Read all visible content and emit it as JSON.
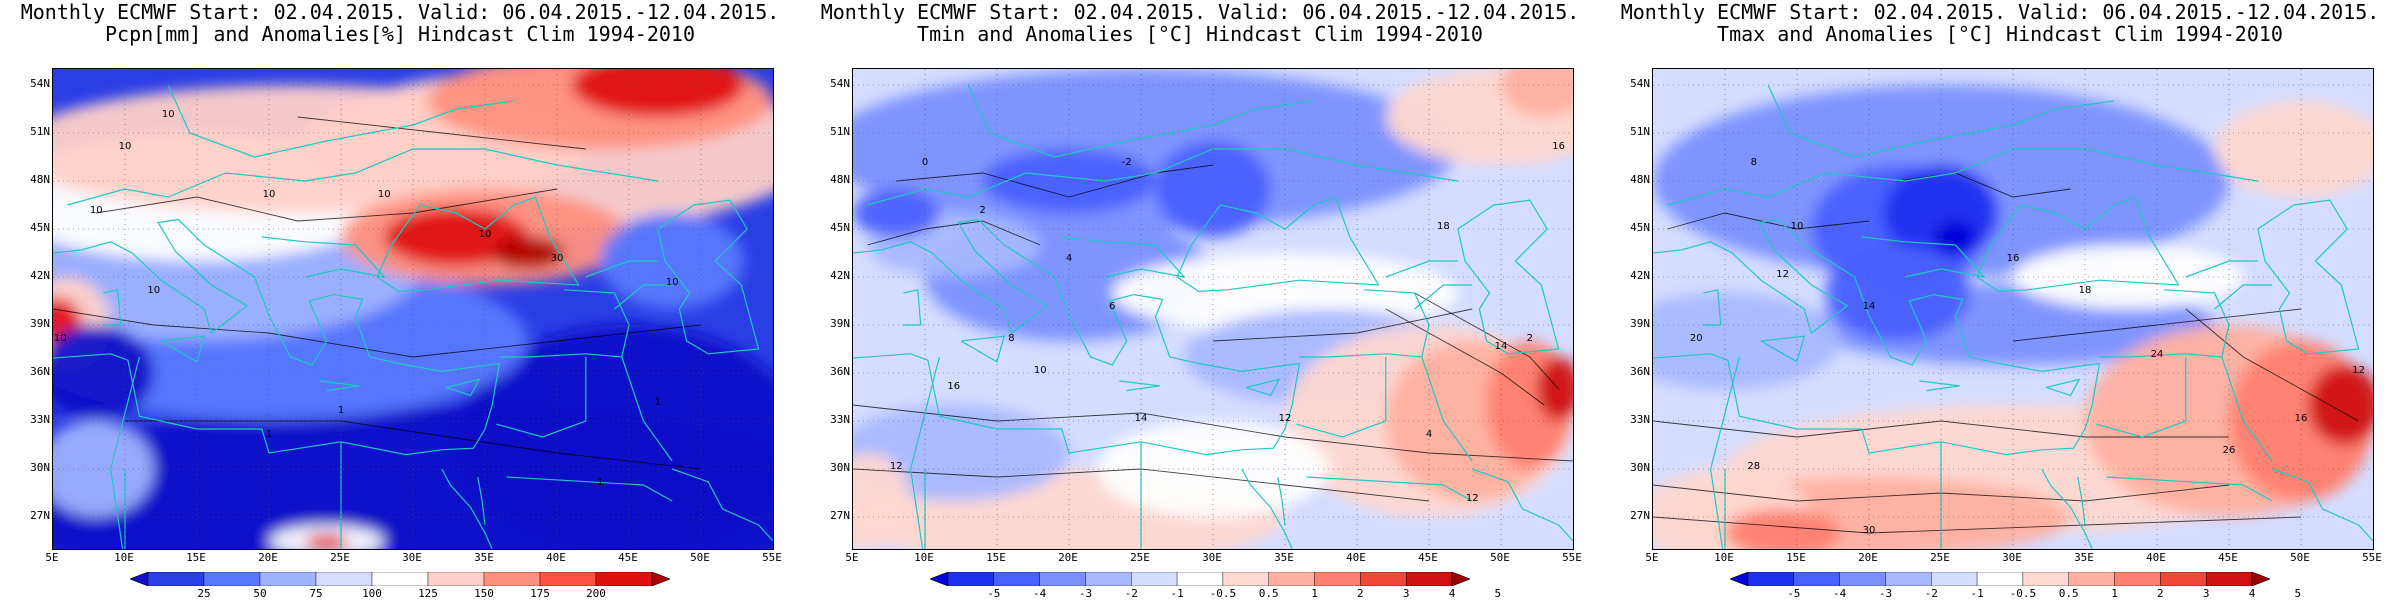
{
  "panels": [
    {
      "title_line1": "Monthly ECMWF Start: 02.04.2015. Valid: 06.04.2015.-12.04.2015.",
      "title_line2": "Pcpn[mm] and Anomalies[%] Hindcast Clim 1994-2010",
      "colorbar_labels": [
        "25",
        "50",
        "75",
        "100",
        "125",
        "150",
        "175",
        "200"
      ],
      "colorbar_colors": [
        "#1010c8",
        "#2a3ee6",
        "#5a78ff",
        "#9fb2ff",
        "#d6dcff",
        "#ffffff",
        "#ffd0c8",
        "#ff9080",
        "#ff5040",
        "#e01010",
        "#b00000"
      ],
      "contour_labels": [
        "10",
        "10",
        "10",
        "10",
        "10",
        "10",
        "10",
        "30",
        "10",
        "10",
        "1",
        "1",
        "1",
        "1"
      ]
    },
    {
      "title_line1": "Monthly ECMWF Start: 02.04.2015. Valid: 06.04.2015.-12.04.2015.",
      "title_line2": "Tmin and Anomalies [°C] Hindcast Clim 1994-2010",
      "colorbar_labels": [
        "-5",
        "-4",
        "-3",
        "-2",
        "-1",
        "-0.5",
        "0.5",
        "1",
        "2",
        "3",
        "4",
        "5"
      ],
      "colorbar_colors": [
        "#0000d8",
        "#2030f0",
        "#4a60ff",
        "#7a90ff",
        "#a8b8ff",
        "#d4dcff",
        "#ffffff",
        "#ffd8d0",
        "#ffb0a0",
        "#ff8070",
        "#f04838",
        "#d01010",
        "#a00000"
      ],
      "contour_labels": [
        "0",
        "-2",
        "2",
        "4",
        "6",
        "8",
        "10",
        "12",
        "14",
        "16",
        "18",
        "2",
        "4",
        "12",
        "16",
        "14",
        "12"
      ]
    },
    {
      "title_line1": "Monthly ECMWF Start: 02.04.2015. Valid: 06.04.2015.-12.04.2015.",
      "title_line2": "Tmax and Anomalies [°C] Hindcast Clim 1994-2010",
      "colorbar_labels": [
        "-5",
        "-4",
        "-3",
        "-2",
        "-1",
        "-0.5",
        "0.5",
        "1",
        "2",
        "3",
        "4",
        "5"
      ],
      "colorbar_colors": [
        "#0000d8",
        "#2030f0",
        "#4a60ff",
        "#7a90ff",
        "#a8b8ff",
        "#d4dcff",
        "#ffffff",
        "#ffd8d0",
        "#ffb0a0",
        "#ff8070",
        "#f04838",
        "#d01010",
        "#a00000"
      ],
      "contour_labels": [
        "8",
        "10",
        "12",
        "14",
        "16",
        "18",
        "20",
        "24",
        "26",
        "28",
        "30",
        "12",
        "16"
      ]
    }
  ],
  "lat_labels": [
    "54N",
    "51N",
    "48N",
    "45N",
    "42N",
    "39N",
    "36N",
    "33N",
    "30N",
    "27N"
  ],
  "lon_labels": [
    "5E",
    "10E",
    "15E",
    "20E",
    "25E",
    "30E",
    "35E",
    "40E",
    "45E",
    "50E",
    "55E"
  ]
}
